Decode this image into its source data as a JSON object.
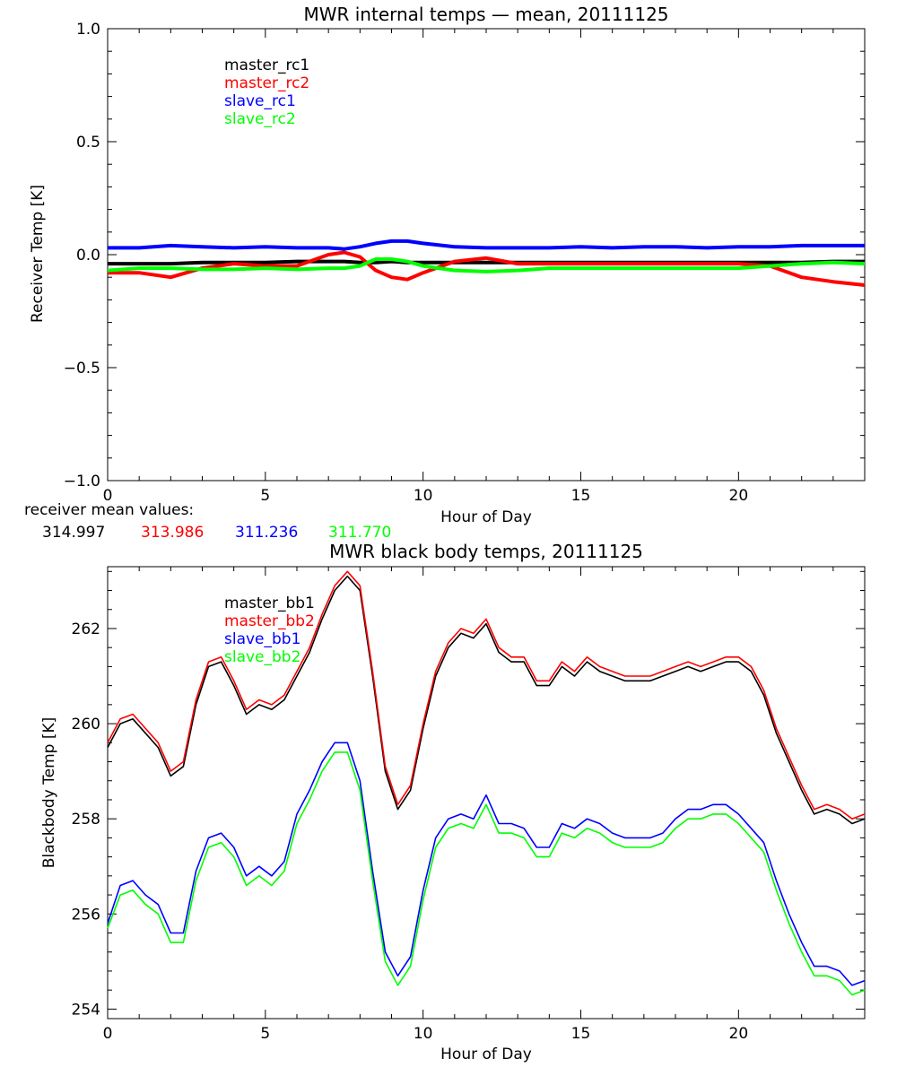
{
  "chart_data": [
    {
      "type": "line",
      "title": "MWR internal temps — mean, 20111125",
      "xlabel": "Hour of Day",
      "ylabel": "Receiver Temp [K]",
      "xlim": [
        0,
        24
      ],
      "ylim": [
        -1.0,
        1.0
      ],
      "xticks": [
        0,
        5,
        10,
        15,
        20
      ],
      "yticks": [
        -1.0,
        -0.5,
        0.0,
        0.5,
        1.0
      ],
      "yticklabels": [
        "−1.0",
        "−0.5",
        "0.0",
        "0.5",
        "1.0"
      ],
      "legend_position": "top-left",
      "grid": false,
      "x": [
        0,
        1,
        2,
        3,
        4,
        5,
        6,
        7,
        7.5,
        8,
        8.5,
        9,
        9.5,
        10,
        11,
        12,
        13,
        14,
        15,
        16,
        17,
        18,
        19,
        20,
        21,
        22,
        23,
        24
      ],
      "series": [
        {
          "name": "master_rc1",
          "color": "#000000",
          "values": [
            -0.04,
            -0.04,
            -0.04,
            -0.035,
            -0.035,
            -0.035,
            -0.03,
            -0.03,
            -0.03,
            -0.035,
            -0.035,
            -0.03,
            -0.035,
            -0.035,
            -0.035,
            -0.035,
            -0.035,
            -0.035,
            -0.035,
            -0.035,
            -0.035,
            -0.035,
            -0.035,
            -0.035,
            -0.035,
            -0.035,
            -0.03,
            -0.03
          ]
        },
        {
          "name": "master_rc2",
          "color": "#ff0000",
          "values": [
            -0.08,
            -0.08,
            -0.1,
            -0.06,
            -0.04,
            -0.05,
            -0.05,
            0.0,
            0.01,
            -0.01,
            -0.07,
            -0.1,
            -0.11,
            -0.08,
            -0.03,
            -0.015,
            -0.04,
            -0.04,
            -0.04,
            -0.04,
            -0.04,
            -0.04,
            -0.04,
            -0.04,
            -0.05,
            -0.1,
            -0.12,
            -0.135
          ]
        },
        {
          "name": "slave_rc1",
          "color": "#0000ff",
          "values": [
            0.03,
            0.03,
            0.04,
            0.035,
            0.03,
            0.035,
            0.03,
            0.03,
            0.025,
            0.035,
            0.05,
            0.06,
            0.06,
            0.05,
            0.035,
            0.03,
            0.03,
            0.03,
            0.035,
            0.03,
            0.035,
            0.035,
            0.03,
            0.035,
            0.035,
            0.04,
            0.04,
            0.04
          ]
        },
        {
          "name": "slave_rc2",
          "color": "#00ff00",
          "values": [
            -0.07,
            -0.06,
            -0.06,
            -0.065,
            -0.065,
            -0.06,
            -0.065,
            -0.06,
            -0.06,
            -0.05,
            -0.02,
            -0.02,
            -0.03,
            -0.05,
            -0.07,
            -0.075,
            -0.07,
            -0.06,
            -0.06,
            -0.06,
            -0.06,
            -0.06,
            -0.06,
            -0.06,
            -0.05,
            -0.04,
            -0.035,
            -0.04
          ]
        }
      ],
      "annotation_label": "receiver mean values:",
      "annotation_values": [
        "314.997",
        "313.986",
        "311.236",
        "311.770"
      ]
    },
    {
      "type": "line",
      "title": "MWR black body temps, 20111125",
      "xlabel": "Hour of Day",
      "ylabel": "Blackbody Temp [K]",
      "xlim": [
        0,
        24
      ],
      "ylim": [
        253.8,
        263.3
      ],
      "xticks": [
        0,
        5,
        10,
        15,
        20
      ],
      "yticks": [
        254,
        256,
        258,
        260,
        262
      ],
      "legend_position": "top-left",
      "grid": false,
      "x": [
        0,
        0.4,
        0.8,
        1.2,
        1.6,
        2.0,
        2.4,
        2.8,
        3.2,
        3.6,
        4.0,
        4.4,
        4.8,
        5.2,
        5.6,
        6.0,
        6.4,
        6.8,
        7.2,
        7.6,
        8.0,
        8.4,
        8.8,
        9.2,
        9.6,
        10.0,
        10.4,
        10.8,
        11.2,
        11.6,
        12.0,
        12.4,
        12.8,
        13.2,
        13.6,
        14.0,
        14.4,
        14.8,
        15.2,
        15.6,
        16.0,
        16.4,
        16.8,
        17.2,
        17.6,
        18.0,
        18.4,
        18.8,
        19.2,
        19.6,
        20.0,
        20.4,
        20.8,
        21.2,
        21.6,
        22.0,
        22.4,
        22.8,
        23.2,
        23.6,
        24.0
      ],
      "series": [
        {
          "name": "master_bb1",
          "color": "#000000",
          "values": [
            259.5,
            260.0,
            260.1,
            259.8,
            259.5,
            258.9,
            259.1,
            260.4,
            261.2,
            261.3,
            260.8,
            260.2,
            260.4,
            260.3,
            260.5,
            261.0,
            261.5,
            262.2,
            262.8,
            263.1,
            262.8,
            261.0,
            259.0,
            258.2,
            258.6,
            259.9,
            261.0,
            261.6,
            261.9,
            261.8,
            262.1,
            261.5,
            261.3,
            261.3,
            260.8,
            260.8,
            261.2,
            261.0,
            261.3,
            261.1,
            261.0,
            260.9,
            260.9,
            260.9,
            261.0,
            261.1,
            261.2,
            261.1,
            261.2,
            261.3,
            261.3,
            261.1,
            260.6,
            259.8,
            259.2,
            258.6,
            258.1,
            258.2,
            258.1,
            257.9,
            258.0
          ]
        },
        {
          "name": "master_bb2",
          "color": "#ff0000",
          "values": [
            259.6,
            260.1,
            260.2,
            259.9,
            259.6,
            259.0,
            259.2,
            260.5,
            261.3,
            261.4,
            260.9,
            260.3,
            260.5,
            260.4,
            260.6,
            261.1,
            261.6,
            262.3,
            262.9,
            263.2,
            262.9,
            261.1,
            259.1,
            258.3,
            258.7,
            260.0,
            261.1,
            261.7,
            262.0,
            261.9,
            262.2,
            261.6,
            261.4,
            261.4,
            260.9,
            260.9,
            261.3,
            261.1,
            261.4,
            261.2,
            261.1,
            261.0,
            261.0,
            261.0,
            261.1,
            261.2,
            261.3,
            261.2,
            261.3,
            261.4,
            261.4,
            261.2,
            260.7,
            259.9,
            259.3,
            258.7,
            258.2,
            258.3,
            258.2,
            258.0,
            258.1
          ]
        },
        {
          "name": "slave_bb1",
          "color": "#0000ff",
          "values": [
            255.8,
            256.6,
            256.7,
            256.4,
            256.2,
            255.6,
            255.6,
            256.9,
            257.6,
            257.7,
            257.4,
            256.8,
            257.0,
            256.8,
            257.1,
            258.1,
            258.6,
            259.2,
            259.6,
            259.6,
            258.8,
            256.9,
            255.2,
            254.7,
            255.1,
            256.5,
            257.6,
            258.0,
            258.1,
            258.0,
            258.5,
            257.9,
            257.9,
            257.8,
            257.4,
            257.4,
            257.9,
            257.8,
            258.0,
            257.9,
            257.7,
            257.6,
            257.6,
            257.6,
            257.7,
            258.0,
            258.2,
            258.2,
            258.3,
            258.3,
            258.1,
            257.8,
            257.5,
            256.7,
            256.0,
            255.4,
            254.9,
            254.9,
            254.8,
            254.5,
            254.6
          ]
        },
        {
          "name": "slave_bb2",
          "color": "#00ff00",
          "values": [
            255.7,
            256.4,
            256.5,
            256.2,
            256.0,
            255.4,
            255.4,
            256.7,
            257.4,
            257.5,
            257.2,
            256.6,
            256.8,
            256.6,
            256.9,
            257.9,
            258.4,
            259.0,
            259.4,
            259.4,
            258.6,
            256.7,
            255.0,
            254.5,
            254.9,
            256.3,
            257.4,
            257.8,
            257.9,
            257.8,
            258.3,
            257.7,
            257.7,
            257.6,
            257.2,
            257.2,
            257.7,
            257.6,
            257.8,
            257.7,
            257.5,
            257.4,
            257.4,
            257.4,
            257.5,
            257.8,
            258.0,
            258.0,
            258.1,
            258.1,
            257.9,
            257.6,
            257.3,
            256.5,
            255.8,
            255.2,
            254.7,
            254.7,
            254.6,
            254.3,
            254.4
          ]
        }
      ]
    }
  ]
}
